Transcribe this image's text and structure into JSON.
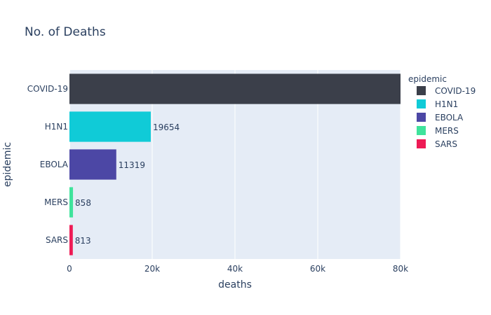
{
  "chart_data": {
    "type": "bar",
    "orientation": "horizontal",
    "title": "No. of Deaths",
    "xlabel": "deaths",
    "ylabel": "epidemic",
    "xlim": [
      0,
      80000
    ],
    "x_ticks": [
      {
        "value": 0,
        "label": "0"
      },
      {
        "value": 20000,
        "label": "20k"
      },
      {
        "value": 40000,
        "label": "40k"
      },
      {
        "value": 60000,
        "label": "60k"
      },
      {
        "value": 80000,
        "label": "80k"
      }
    ],
    "categories": [
      "COVID-19",
      "H1N1",
      "EBOLA",
      "MERS",
      "SARS"
    ],
    "series": [
      {
        "name": "COVID-19",
        "color": "#3b3f4a",
        "values": [
          80000,
          null,
          null,
          null,
          null
        ],
        "label": ""
      },
      {
        "name": "H1N1",
        "color": "#10cbd7",
        "values": [
          null,
          19654,
          null,
          null,
          null
        ],
        "label": "19654"
      },
      {
        "name": "EBOLA",
        "color": "#4c47a5",
        "values": [
          null,
          null,
          11319,
          null,
          null
        ],
        "label": "11319"
      },
      {
        "name": "MERS",
        "color": "#3fe39c",
        "values": [
          null,
          null,
          null,
          858,
          null
        ],
        "label": "858"
      },
      {
        "name": "SARS",
        "color": "#ee1b55",
        "values": [
          null,
          null,
          null,
          null,
          813
        ],
        "label": "813"
      }
    ],
    "legend": {
      "title": "epidemic",
      "position": "right"
    },
    "grid": true,
    "plot_background": "#e5ecf6"
  }
}
